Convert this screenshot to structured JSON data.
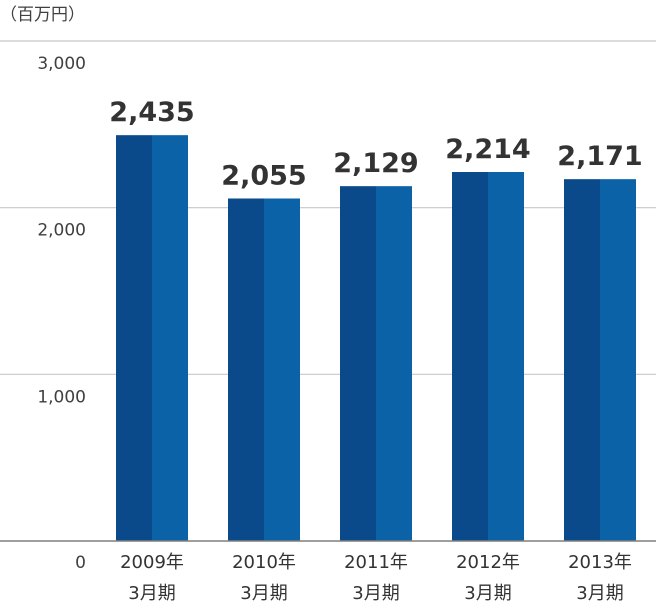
{
  "chart_data": {
    "type": "bar",
    "unit_label": "（百万円）",
    "categories": [
      [
        "2009年",
        "3月期"
      ],
      [
        "2010年",
        "3月期"
      ],
      [
        "2011年",
        "3月期"
      ],
      [
        "2012年",
        "3月期"
      ],
      [
        "2013年",
        "3月期"
      ]
    ],
    "values": [
      2435,
      2055,
      2129,
      2214,
      2171
    ],
    "data_labels": [
      "2,435",
      "2,055",
      "2,129",
      "2,214",
      "2,171"
    ],
    "y_ticks": [
      {
        "value": 0,
        "label": "0"
      },
      {
        "value": 1000,
        "label": "1,000"
      },
      {
        "value": 2000,
        "label": "2,000"
      },
      {
        "value": 3000,
        "label": "3,000"
      }
    ],
    "ylim": [
      0,
      3000
    ],
    "grid": true,
    "legend": "none",
    "colors": {
      "bar_dark": "#0a4a8a",
      "bar_light": "#0c62a6",
      "grid": "#c8c8c8",
      "axis": "#7f7f7f"
    }
  }
}
